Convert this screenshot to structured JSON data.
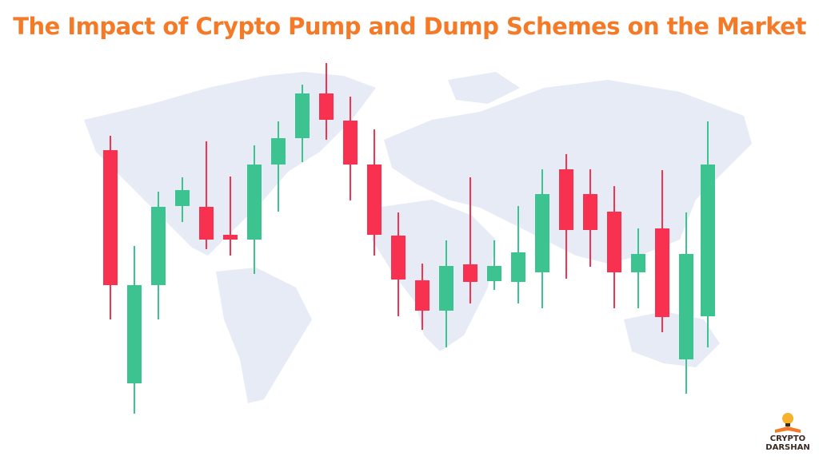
{
  "header": {
    "title": "The Impact of Crypto Pump and Dump Schemes on the Market"
  },
  "logo": {
    "line1": "CRYPTO",
    "line2": "DARSHAN"
  }
}
